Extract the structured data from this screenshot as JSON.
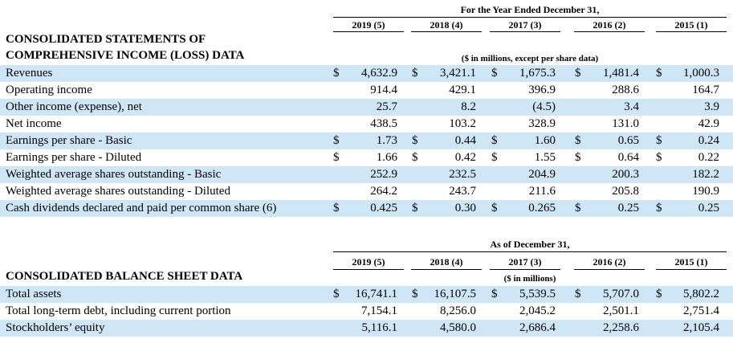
{
  "income": {
    "period_header": "For the Year Ended December 31,",
    "years": [
      "2019 (5)",
      "2018 (4)",
      "2017 (3)",
      "2016 (2)",
      "2015 (1)"
    ],
    "title_line1": "CONSOLIDATED STATEMENTS OF",
    "title_line2": "COMPREHENSIVE INCOME (LOSS) DATA",
    "units": "($ in millions, except per share data)",
    "rows": [
      {
        "label": "Revenues",
        "cur": [
          "$",
          "$",
          "$",
          "$",
          "$"
        ],
        "values": [
          "4,632.9",
          "3,421.1",
          "1,675.3",
          "1,481.4",
          "1,000.3"
        ]
      },
      {
        "label": "Operating income",
        "cur": [
          "",
          "",
          "",
          "",
          ""
        ],
        "values": [
          "914.4",
          "429.1",
          "396.9",
          "288.6",
          "164.7"
        ]
      },
      {
        "label": "Other income (expense), net",
        "cur": [
          "",
          "",
          "",
          "",
          ""
        ],
        "values": [
          "25.7",
          "8.2",
          "(4.5)",
          "3.4",
          "3.9"
        ]
      },
      {
        "label": "Net income",
        "cur": [
          "",
          "",
          "",
          "",
          ""
        ],
        "values": [
          "438.5",
          "103.2",
          "328.9",
          "131.0",
          "42.9"
        ]
      },
      {
        "label": "Earnings per share - Basic",
        "cur": [
          "$",
          "$",
          "$",
          "$",
          "$"
        ],
        "values": [
          "1.73",
          "0.44",
          "1.60",
          "0.65",
          "0.24"
        ]
      },
      {
        "label": "Earnings per share - Diluted",
        "cur": [
          "$",
          "$",
          "$",
          "$",
          "$"
        ],
        "values": [
          "1.66",
          "0.42",
          "1.55",
          "0.64",
          "0.22"
        ]
      },
      {
        "label": "Weighted average shares outstanding - Basic",
        "cur": [
          "",
          "",
          "",
          "",
          ""
        ],
        "values": [
          "252.9",
          "232.5",
          "204.9",
          "200.3",
          "182.2"
        ]
      },
      {
        "label": "Weighted average shares outstanding - Diluted",
        "cur": [
          "",
          "",
          "",
          "",
          ""
        ],
        "values": [
          "264.2",
          "243.7",
          "211.6",
          "205.8",
          "190.9"
        ]
      },
      {
        "label": "Cash dividends declared  and paid per common share (6)",
        "cur": [
          "$",
          "$",
          "$",
          "$",
          "$"
        ],
        "values": [
          "0.425",
          "0.30",
          "0.265",
          "0.25",
          "0.25"
        ]
      }
    ]
  },
  "balance": {
    "period_header": "As of December 31,",
    "years": [
      "2019 (5)",
      "2018 (4)",
      "2017 (3)",
      "2016 (2)",
      "2015 (1)"
    ],
    "title": "CONSOLIDATED BALANCE SHEET DATA",
    "units": "($ in millions)",
    "rows": [
      {
        "label": "Total assets",
        "cur": [
          "$",
          "$",
          "$",
          "$",
          "$"
        ],
        "values": [
          "16,741.1",
          "16,107.5",
          "5,539.5",
          "5,707.0",
          "5,802.2"
        ]
      },
      {
        "label": "Total long-term debt, including current portion",
        "cur": [
          "",
          "",
          "",
          "",
          ""
        ],
        "values": [
          "7,154.1",
          "8,256.0",
          "2,045.2",
          "2,501.1",
          "2,751.4"
        ]
      },
      {
        "label": "Stockholders’ equity",
        "cur": [
          "",
          "",
          "",
          "",
          ""
        ],
        "values": [
          "5,116.1",
          "4,580.0",
          "2,686.4",
          "2,258.6",
          "2,105.4"
        ]
      }
    ]
  }
}
